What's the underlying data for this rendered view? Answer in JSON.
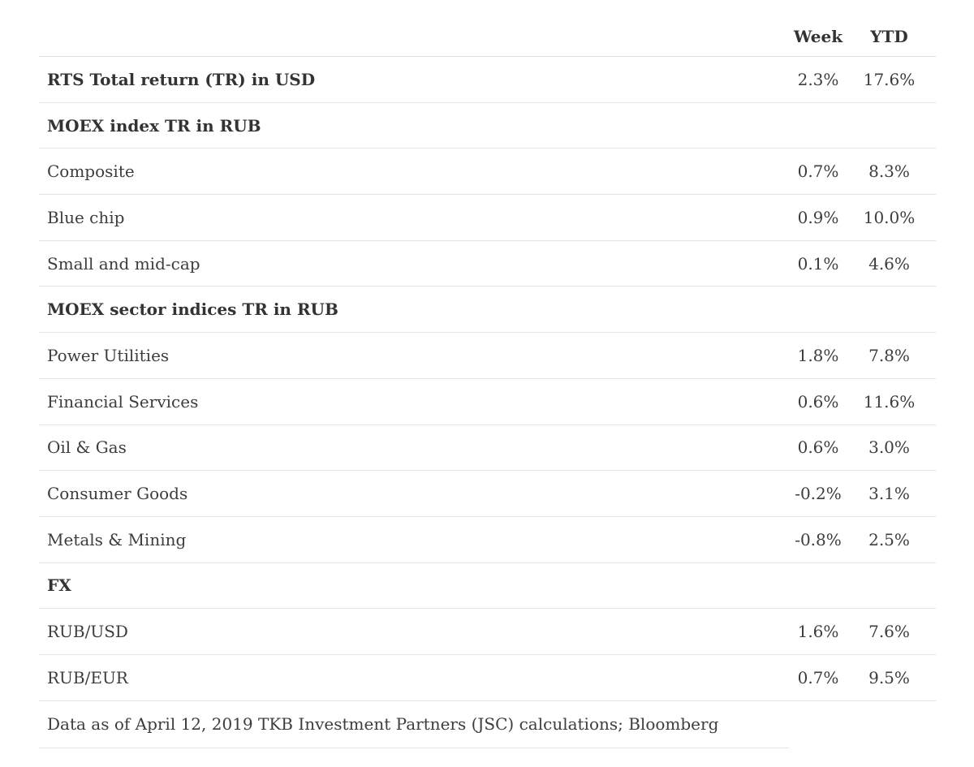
{
  "chart_data": {
    "type": "table",
    "columns": [
      "Week",
      "YTD"
    ],
    "rows": [
      {
        "label": "RTS Total return (TR) in USD",
        "week": "2.3%",
        "ytd": "17.6%",
        "style": "bold"
      },
      {
        "label": "MOEX index TR in RUB",
        "week": "",
        "ytd": "",
        "style": "section"
      },
      {
        "label": "Composite",
        "week": "0.7%",
        "ytd": "8.3%",
        "style": "normal"
      },
      {
        "label": "Blue chip",
        "week": "0.9%",
        "ytd": "10.0%",
        "style": "normal"
      },
      {
        "label": "Small and mid-cap",
        "week": "0.1%",
        "ytd": "4.6%",
        "style": "normal"
      },
      {
        "label": "MOEX sector indices TR in RUB",
        "week": "",
        "ytd": "",
        "style": "section"
      },
      {
        "label": "Power Utilities",
        "week": "1.8%",
        "ytd": "7.8%",
        "style": "normal"
      },
      {
        "label": "Financial Services",
        "week": "0.6%",
        "ytd": "11.6%",
        "style": "normal"
      },
      {
        "label": "Oil & Gas",
        "week": "0.6%",
        "ytd": "3.0%",
        "style": "normal"
      },
      {
        "label": "Consumer Goods",
        "week": "-0.2%",
        "ytd": "3.1%",
        "style": "normal"
      },
      {
        "label": "Metals & Mining",
        "week": "-0.8%",
        "ytd": "2.5%",
        "style": "normal"
      },
      {
        "label": "FX",
        "week": "",
        "ytd": "",
        "style": "section"
      },
      {
        "label": "RUB/USD",
        "week": "1.6%",
        "ytd": "7.6%",
        "style": "normal"
      },
      {
        "label": "RUB/EUR",
        "week": "0.7%",
        "ytd": "9.5%",
        "style": "normal"
      }
    ],
    "footnote": "Data as of April 12, 2019 TKB Investment Partners (JSC) calculations; Bloomberg"
  },
  "colors": {
    "background": "#ffffff",
    "text": "#3d3d3d",
    "bold_text": "#333333",
    "divider": "#e3e3e3"
  }
}
